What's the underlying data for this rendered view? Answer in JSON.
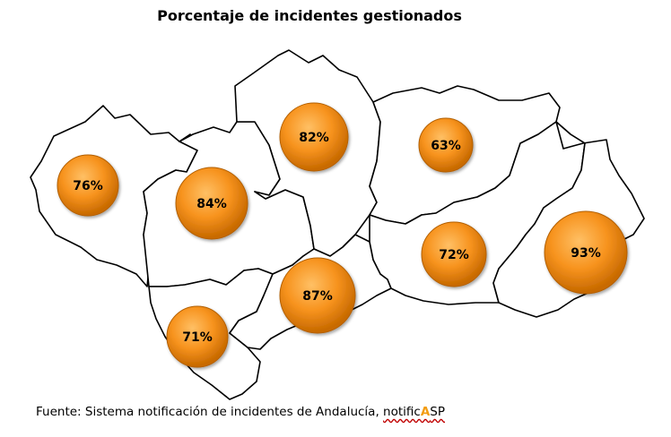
{
  "title": "Porcentaje de incidentes gestionados",
  "map": {
    "region_count": 8,
    "bubble_color": "#f7931e",
    "bubble_highlight": "#ffc065",
    "bubble_shadow": "#c86a00",
    "provinces": [
      {
        "id": "huelva",
        "label": "76%",
        "value": 76
      },
      {
        "id": "sevilla",
        "label": "84%",
        "value": 84
      },
      {
        "id": "cordoba",
        "label": "82%",
        "value": 82
      },
      {
        "id": "jaen",
        "label": "63%",
        "value": 63
      },
      {
        "id": "cadiz",
        "label": "71%",
        "value": 71
      },
      {
        "id": "malaga",
        "label": "87%",
        "value": 87
      },
      {
        "id": "granada",
        "label": "72%",
        "value": 72
      },
      {
        "id": "almeria",
        "label": "93%",
        "value": 93
      }
    ]
  },
  "source": {
    "prefix": "Fuente: Sistema notificación de incidentes de Andalucía, ",
    "brand_part1": "notific",
    "brand_accent": "A",
    "brand_part2": "SP"
  }
}
